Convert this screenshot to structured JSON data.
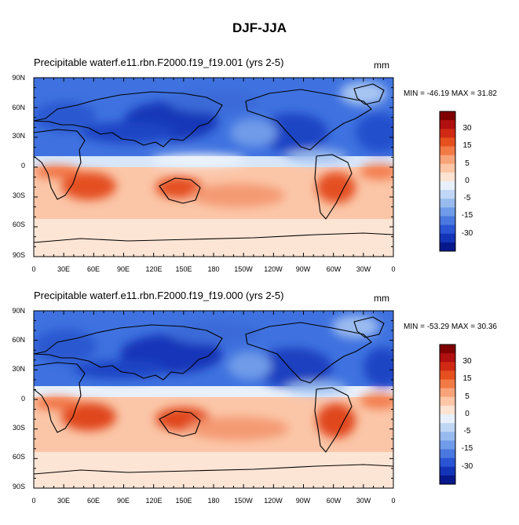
{
  "title": "DJF-JJA",
  "panels": [
    {
      "title": "Precipitable waterf.e11.rbn.F2000.f19_f19.001 (yrs 2-5)",
      "units": "mm",
      "minmax": "MIN = -46.19 MAX =  31.82"
    },
    {
      "title": "Precipitable waterf.e11.rbn.F2000.f19_f19.000 (yrs 2-5)",
      "units": "mm",
      "minmax": "MIN = -53.29 MAX =  30.36"
    }
  ],
  "lat_labels": [
    "90N",
    "60N",
    "30N",
    "0",
    "30S",
    "60S",
    "90S"
  ],
  "lon_labels": [
    "0",
    "30E",
    "60E",
    "90E",
    "120E",
    "150E",
    "180",
    "150W",
    "120W",
    "90W",
    "60W",
    "30W",
    "0"
  ],
  "colorbar": {
    "labels": [
      "30",
      "15",
      "5",
      "0",
      "-5",
      "-15",
      "-30"
    ],
    "colors": [
      "#800000",
      "#b01010",
      "#d02a14",
      "#e6501e",
      "#f27a46",
      "#f9a37a",
      "#fdc6a6",
      "#fde3d2",
      "#e8f0fb",
      "#c0d6f5",
      "#98bbef",
      "#6f9be8",
      "#4a78e0",
      "#2a54d4",
      "#1434b8",
      "#06188a"
    ]
  },
  "colors": {
    "ocean_blue": "#3b6fe0",
    "deep_blue": "#1536b8",
    "ocean_red": "#f4a888",
    "deep_red": "#d83a1c",
    "coast": "#000000"
  }
}
